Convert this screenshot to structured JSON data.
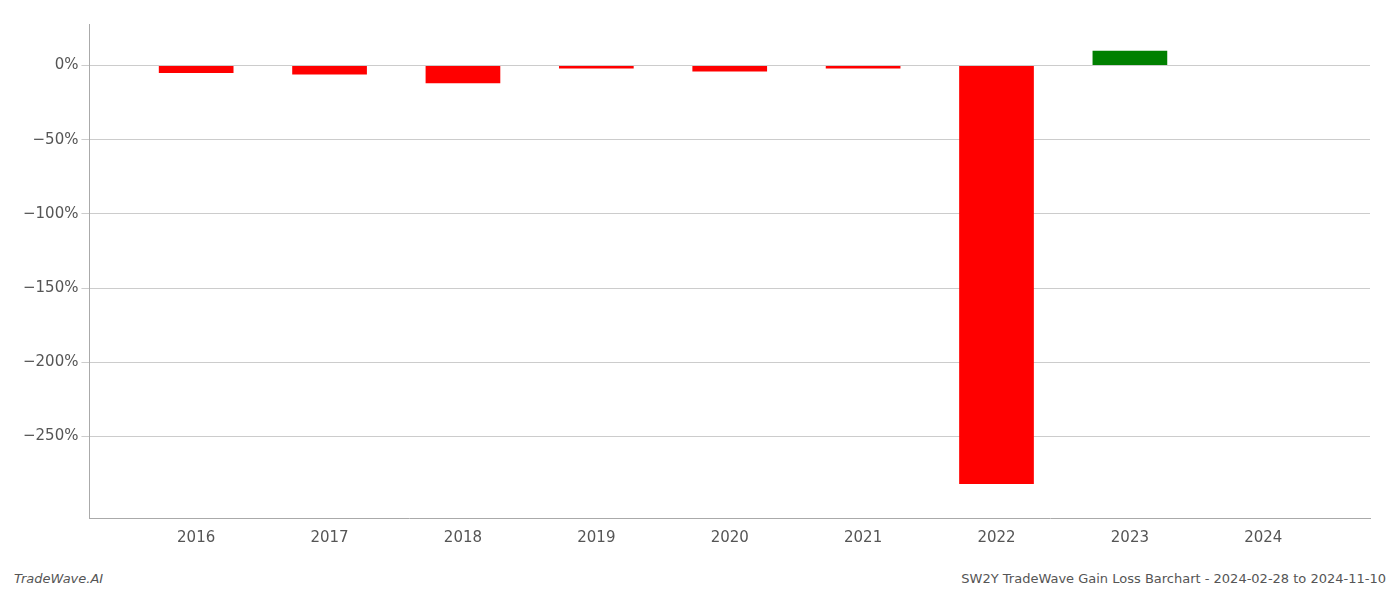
{
  "chart_data": {
    "type": "bar",
    "x": [
      2016,
      2017,
      2018,
      2019,
      2020,
      2021,
      2022,
      2023
    ],
    "values": [
      -0.05,
      -0.06,
      -0.12,
      -0.02,
      -0.04,
      -0.02,
      -2.82,
      0.1
    ],
    "colors": [
      "#ff0000",
      "#ff0000",
      "#ff0000",
      "#ff0000",
      "#ff0000",
      "#ff0000",
      "#ff0000",
      "#008000"
    ],
    "xlim": [
      2015.2,
      2024.8
    ],
    "xticks": [
      2016,
      2017,
      2018,
      2019,
      2020,
      2021,
      2022,
      2023,
      2024
    ],
    "ylim": [
      -3.05,
      0.28
    ],
    "yticks": [
      {
        "value": 0,
        "label": "0%"
      },
      {
        "value": -0.5,
        "label": "−50%"
      },
      {
        "value": -1.0,
        "label": "−100%"
      },
      {
        "value": -1.5,
        "label": "−150%"
      },
      {
        "value": -2.0,
        "label": "−200%"
      },
      {
        "value": -2.5,
        "label": "−250%"
      }
    ],
    "grid": true,
    "annotations": [
      "TradeWave.AI",
      "SW2Y TradeWave Gain Loss Barchart - 2024-02-28 to 2024-11-10"
    ]
  }
}
